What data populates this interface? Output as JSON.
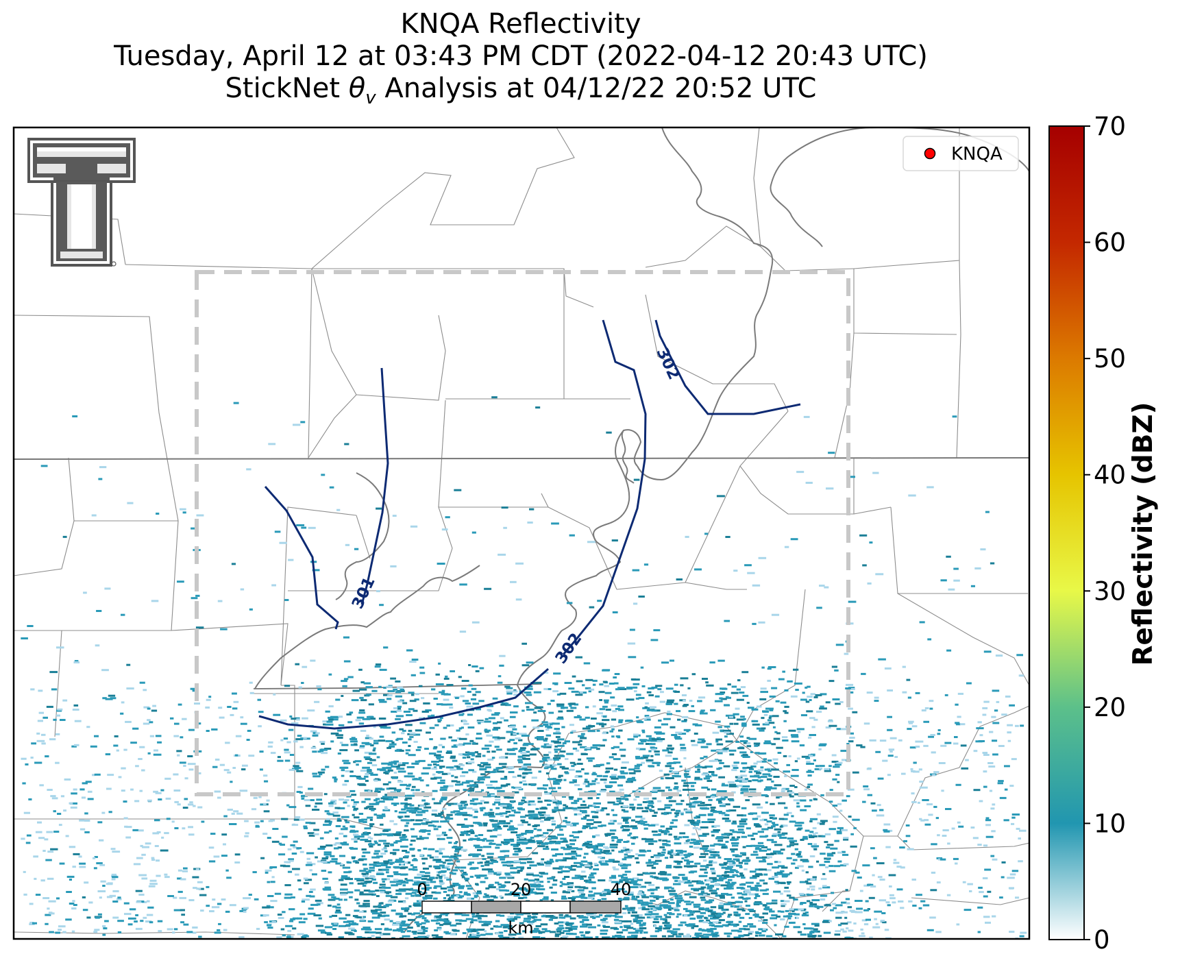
{
  "title": {
    "line1": "KNQA Reflectivity",
    "line2": "Tuesday, April 12 at 03:43 PM CDT (2022-04-12 20:43 UTC)",
    "line3_prefix": "StickNet ",
    "line3_symbol": "θ",
    "line3_sub": "v",
    "line3_suffix": " Analysis at 04/12/22 20:52 UTC"
  },
  "legend": {
    "marker_color": "#ff0000",
    "label": "KNQA"
  },
  "colorbar": {
    "label": "Reflectivity (dBZ)",
    "min": 0,
    "max": 70,
    "ticks": [
      "0",
      "10",
      "20",
      "30",
      "40",
      "50",
      "60",
      "70"
    ],
    "colors": [
      "#ffffff",
      "#2196b0",
      "#5cc08a",
      "#e8f848",
      "#e6c400",
      "#dc7a00",
      "#c42800",
      "#a50000"
    ]
  },
  "contours": [
    {
      "label": "301",
      "theta_v_K": 301
    },
    {
      "label": "301",
      "theta_v_K": 301
    },
    {
      "label": "302",
      "theta_v_K": 302
    },
    {
      "label": "302",
      "theta_v_K": 302
    },
    {
      "label": "302",
      "theta_v_K": 302
    }
  ],
  "scale_bar": {
    "ticks": [
      "0",
      "20",
      "40"
    ],
    "unit": "km"
  },
  "colors": {
    "contour": "#0d2a73",
    "domain_box": "#c8c8c8",
    "county_lines": "#8c8c8c",
    "state_lines": "#777777",
    "river": "#7a7a7a",
    "echo_light": "#a9d6ea",
    "echo_main": "#2a9ab8",
    "echo_dark": "#1b7f97"
  },
  "logo": {
    "name": "Texas Tech Double T"
  }
}
